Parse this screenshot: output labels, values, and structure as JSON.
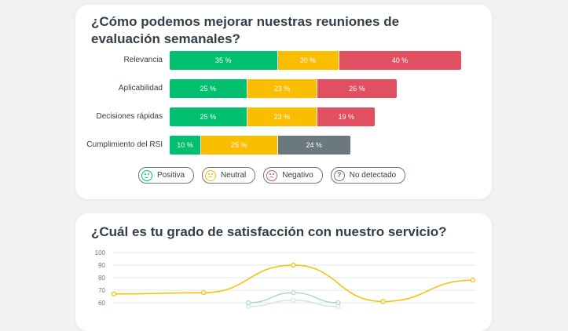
{
  "survey_1": {
    "title": "¿Cómo podemos mejorar nuestras reuniones de evaluación semanales?",
    "rows": [
      {
        "label": "Relevancia",
        "segments": [
          {
            "value": 35,
            "text": "35 %",
            "color": "#00bf6f"
          },
          {
            "value": 20,
            "text": "20 %",
            "color": "#f9be00"
          },
          {
            "value": 40,
            "text": "40 %",
            "color": "#e05061"
          }
        ]
      },
      {
        "label": "Aplicabilidad",
        "segments": [
          {
            "value": 25,
            "text": "25 %",
            "color": "#00bf6f"
          },
          {
            "value": 23,
            "text": "23 %",
            "color": "#f9be00"
          },
          {
            "value": 26,
            "text": "26 %",
            "color": "#e05061"
          }
        ]
      },
      {
        "label": "Decisiones rápidas",
        "segments": [
          {
            "value": 25,
            "text": "25 %",
            "color": "#00bf6f"
          },
          {
            "value": 23,
            "text": "23 %",
            "color": "#f9be00"
          },
          {
            "value": 19,
            "text": "19 %",
            "color": "#e05061"
          }
        ]
      },
      {
        "label": "Cumplimiento del RSI",
        "segments": [
          {
            "value": 10,
            "text": "10 %",
            "color": "#00bf6f"
          },
          {
            "value": 25,
            "text": "25 %",
            "color": "#f9be00"
          },
          {
            "value": 24,
            "text": "24 %",
            "color": "#6b787f"
          }
        ]
      }
    ],
    "legend": [
      {
        "label": "Positiva",
        "icon": "happy-face-icon",
        "color": "#00bf6f"
      },
      {
        "label": "Neutral",
        "icon": "neutral-face-icon",
        "color": "#f9be00"
      },
      {
        "label": "Negativo",
        "icon": "sad-face-icon",
        "color": "#e05061"
      },
      {
        "label": "No detectado",
        "icon": "question-icon",
        "color": "#6b787f"
      }
    ]
  },
  "survey_2": {
    "title": "¿Cuál es tu grado de satisfacción con nuestro servicio?"
  },
  "chart_data": [
    {
      "type": "bar",
      "orientation": "horizontal-stacked",
      "categories": [
        "Relevancia",
        "Aplicabilidad",
        "Decisiones rápidas",
        "Cumplimiento del RSI"
      ],
      "series": [
        {
          "name": "Positiva",
          "values": [
            35,
            25,
            25,
            10
          ]
        },
        {
          "name": "Neutral",
          "values": [
            20,
            23,
            23,
            25
          ]
        },
        {
          "name": "Negativo",
          "values": [
            40,
            26,
            19,
            null
          ]
        },
        {
          "name": "No detectado",
          "values": [
            null,
            null,
            null,
            24
          ]
        }
      ],
      "title": "¿Cómo podemos mejorar nuestras reuniones de evaluación semanales?",
      "legend_placement": "bottom",
      "value_unit": "%"
    },
    {
      "type": "line",
      "title": "¿Cuál es tu grado de satisfacción con nuestro servicio?",
      "yticks": [
        100,
        90,
        80,
        70,
        60
      ],
      "ylim": [
        60,
        100
      ],
      "grid": true,
      "series": [
        {
          "color": "#f9be00",
          "x": [
            0,
            1,
            2,
            3,
            4
          ],
          "values": [
            67,
            68,
            90,
            61,
            78
          ]
        },
        {
          "color": "#a8dcc3",
          "x": [
            1.5,
            2,
            2.5
          ],
          "values": [
            60,
            68,
            60
          ]
        },
        {
          "color": "#cfe8dc",
          "x": [
            1.5,
            2,
            2.5
          ],
          "values": [
            57,
            62,
            57
          ]
        }
      ]
    }
  ]
}
